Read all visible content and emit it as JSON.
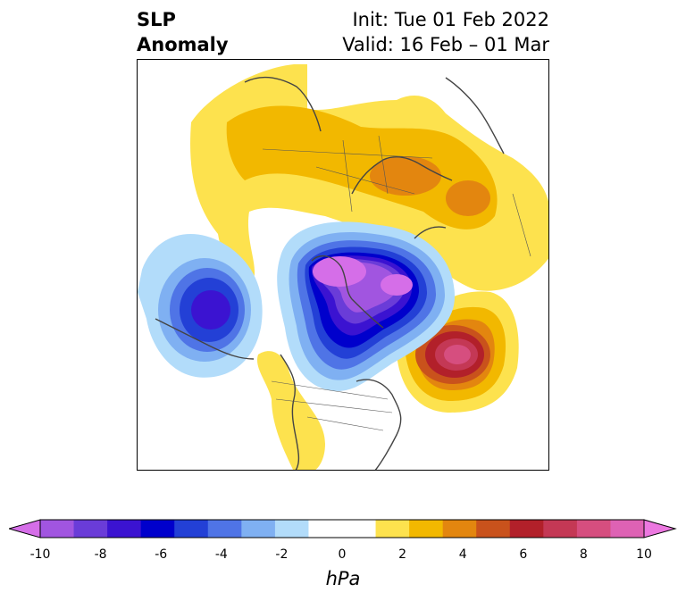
{
  "title": {
    "left_line1": "SLP",
    "left_line2": "Anomaly",
    "right_line1": "Init: Tue 01 Feb 2022",
    "right_line2": "Valid: 16 Feb – 01 Mar"
  },
  "colorbar": {
    "units": "hPa",
    "ticks": [
      "-10",
      "-8",
      "-6",
      "-4",
      "-2",
      "0",
      "2",
      "4",
      "6",
      "8",
      "10"
    ],
    "levels": [
      -10,
      -9,
      -8,
      -7,
      -6,
      -5,
      -4,
      -3,
      -2,
      -1,
      1,
      2,
      3,
      4,
      5,
      6,
      7,
      8,
      9,
      10
    ],
    "colors": [
      "#d56ee8",
      "#a155e0",
      "#6a3cd8",
      "#3b13d1",
      "#0000cc",
      "#2340d6",
      "#4f74e6",
      "#7fb0f2",
      "#b2dcfa",
      "#ffffff",
      "#ffffff",
      "#fde24e",
      "#f2b800",
      "#e3860f",
      "#c9521c",
      "#b2202a",
      "#c43855",
      "#d64e7f",
      "#de62b4",
      "#ec78e0"
    ]
  },
  "map": {
    "projection": "north-polar-stereographic",
    "features": [
      {
        "name": "North Pacific low",
        "sign": "negative",
        "peak_hpa": -6
      },
      {
        "name": "Arctic low",
        "sign": "negative",
        "peak_hpa": -10
      },
      {
        "name": "North Atlantic high",
        "sign": "positive",
        "peak_hpa": 8
      },
      {
        "name": "Eurasian high",
        "sign": "positive",
        "peak_hpa": 4
      }
    ]
  }
}
